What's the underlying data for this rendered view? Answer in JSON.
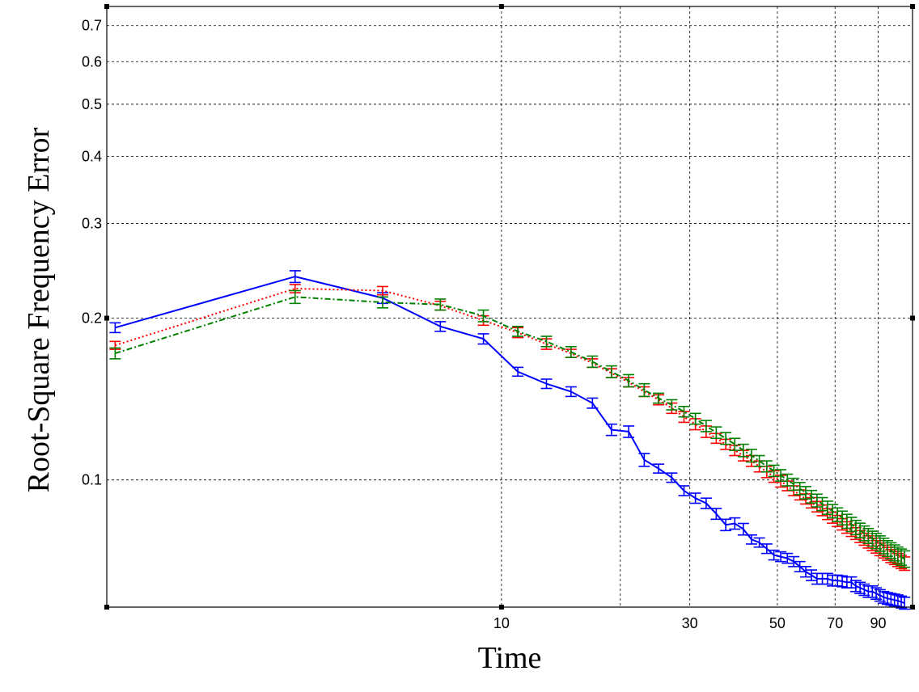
{
  "chart_data": {
    "type": "line",
    "title": "",
    "xlabel": "Time",
    "ylabel": "Root-Square Frequency Error",
    "x_scale": "log",
    "y_scale": "log",
    "xlim": [
      1,
      110
    ],
    "ylim": [
      0.058,
      0.76
    ],
    "grid": true,
    "error_bars": true,
    "xticks": [
      10,
      20,
      30,
      50,
      70,
      90
    ],
    "xtick_labels": [
      "10",
      "",
      "30",
      "50",
      "70",
      "90"
    ],
    "yticks": [
      0.1,
      0.2,
      0.3,
      0.4,
      0.5,
      0.6,
      0.7
    ],
    "ytick_labels": [
      "0.1",
      "0.2",
      "0.3",
      "0.4",
      "0.5",
      "0.6",
      "0.7"
    ],
    "series": [
      {
        "color": "#0000ff",
        "line_style": "solid",
        "points": [
          [
            1.05,
            0.192,
            0.004
          ],
          [
            3.0,
            0.239,
            0.006
          ],
          [
            5.0,
            0.218,
            0.005
          ],
          [
            7.0,
            0.193,
            0.004
          ],
          [
            9.0,
            0.183,
            0.004
          ],
          [
            11.0,
            0.159,
            0.003
          ],
          [
            13.0,
            0.151,
            0.003
          ],
          [
            15.0,
            0.146,
            0.003
          ],
          [
            17.0,
            0.139,
            0.003
          ],
          [
            19.0,
            0.124,
            0.003
          ],
          [
            21.0,
            0.123,
            0.003
          ],
          [
            23.0,
            0.109,
            0.003
          ],
          [
            25.0,
            0.105,
            0.002
          ],
          [
            27.0,
            0.101,
            0.002
          ],
          [
            29.0,
            0.0955,
            0.002
          ],
          [
            31.0,
            0.0925,
            0.002
          ],
          [
            33.0,
            0.0905,
            0.002
          ],
          [
            35.0,
            0.0865,
            0.002
          ],
          [
            37.0,
            0.0825,
            0.002
          ],
          [
            39.0,
            0.083,
            0.002
          ],
          [
            41.0,
            0.081,
            0.002
          ],
          [
            43.0,
            0.0775,
            0.0015
          ],
          [
            45.0,
            0.0765,
            0.0015
          ],
          [
            47.0,
            0.0745,
            0.0015
          ],
          [
            49.0,
            0.0725,
            0.0015
          ],
          [
            51.0,
            0.072,
            0.0015
          ],
          [
            53.0,
            0.0715,
            0.0015
          ],
          [
            55.0,
            0.0705,
            0.0015
          ],
          [
            57.0,
            0.069,
            0.0015
          ],
          [
            59.0,
            0.0675,
            0.0015
          ],
          [
            61.0,
            0.0665,
            0.0015
          ],
          [
            63.0,
            0.0655,
            0.0015
          ],
          [
            65.0,
            0.0655,
            0.0015
          ],
          [
            67.0,
            0.0655,
            0.0015
          ],
          [
            69.0,
            0.065,
            0.0015
          ],
          [
            71.0,
            0.065,
            0.0015
          ],
          [
            73.0,
            0.0648,
            0.0015
          ],
          [
            75.0,
            0.0645,
            0.0015
          ],
          [
            77.0,
            0.0645,
            0.0015
          ],
          [
            79.0,
            0.0635,
            0.0015
          ],
          [
            81.0,
            0.063,
            0.0015
          ],
          [
            83.0,
            0.0625,
            0.0015
          ],
          [
            85.0,
            0.062,
            0.0015
          ],
          [
            87.0,
            0.062,
            0.0015
          ],
          [
            89.0,
            0.0615,
            0.0015
          ],
          [
            91.0,
            0.061,
            0.0015
          ],
          [
            93.0,
            0.0605,
            0.0015
          ],
          [
            95.0,
            0.0602,
            0.0015
          ],
          [
            97.0,
            0.06,
            0.0015
          ],
          [
            99.0,
            0.0598,
            0.0015
          ],
          [
            101.0,
            0.0596,
            0.0015
          ],
          [
            103.0,
            0.0593,
            0.0015
          ],
          [
            105.0,
            0.059,
            0.0015
          ]
        ]
      },
      {
        "color": "#ff0000",
        "line_style": "dotted",
        "points": [
          [
            1.05,
            0.178,
            0.003
          ],
          [
            3.0,
            0.227,
            0.004
          ],
          [
            5.0,
            0.225,
            0.004
          ],
          [
            7.0,
            0.211,
            0.004
          ],
          [
            9.0,
            0.198,
            0.004
          ],
          [
            11.0,
            0.188,
            0.004
          ],
          [
            13.0,
            0.179,
            0.004
          ],
          [
            15.0,
            0.172,
            0.003
          ],
          [
            17.0,
            0.165,
            0.003
          ],
          [
            19.0,
            0.158,
            0.003
          ],
          [
            21.0,
            0.152,
            0.003
          ],
          [
            23.0,
            0.146,
            0.003
          ],
          [
            25.0,
            0.141,
            0.003
          ],
          [
            27.0,
            0.136,
            0.003
          ],
          [
            29.0,
            0.131,
            0.003
          ],
          [
            31.0,
            0.127,
            0.003
          ],
          [
            33.0,
            0.123,
            0.003
          ],
          [
            35.0,
            0.1195,
            0.0025
          ],
          [
            37.0,
            0.1165,
            0.0025
          ],
          [
            39.0,
            0.1135,
            0.0025
          ],
          [
            41.0,
            0.111,
            0.0025
          ],
          [
            43.0,
            0.1085,
            0.0025
          ],
          [
            45.0,
            0.106,
            0.0025
          ],
          [
            47.0,
            0.1035,
            0.0025
          ],
          [
            49.0,
            0.1015,
            0.0025
          ],
          [
            51.0,
            0.0995,
            0.0025
          ],
          [
            53.0,
            0.0975,
            0.002
          ],
          [
            55.0,
            0.0955,
            0.002
          ],
          [
            57.0,
            0.0938,
            0.002
          ],
          [
            59.0,
            0.0922,
            0.002
          ],
          [
            61.0,
            0.0907,
            0.002
          ],
          [
            63.0,
            0.0892,
            0.002
          ],
          [
            65.0,
            0.0878,
            0.002
          ],
          [
            67.0,
            0.0864,
            0.002
          ],
          [
            69.0,
            0.0851,
            0.002
          ],
          [
            71.0,
            0.0839,
            0.002
          ],
          [
            73.0,
            0.0827,
            0.002
          ],
          [
            75.0,
            0.0816,
            0.002
          ],
          [
            77.0,
            0.0805,
            0.002
          ],
          [
            79.0,
            0.0795,
            0.002
          ],
          [
            81.0,
            0.0785,
            0.002
          ],
          [
            83.0,
            0.0776,
            0.002
          ],
          [
            85.0,
            0.0767,
            0.002
          ],
          [
            87.0,
            0.0759,
            0.002
          ],
          [
            89.0,
            0.0751,
            0.002
          ],
          [
            91.0,
            0.0743,
            0.002
          ],
          [
            93.0,
            0.0736,
            0.002
          ],
          [
            95.0,
            0.0729,
            0.002
          ],
          [
            97.0,
            0.0722,
            0.002
          ],
          [
            99.0,
            0.0716,
            0.002
          ],
          [
            101.0,
            0.071,
            0.002
          ],
          [
            103.0,
            0.0704,
            0.002
          ],
          [
            105.0,
            0.0699,
            0.002
          ]
        ]
      },
      {
        "color": "#008000",
        "line_style": "dashdot",
        "points": [
          [
            1.05,
            0.172,
            0.004
          ],
          [
            3.0,
            0.219,
            0.006
          ],
          [
            5.0,
            0.214,
            0.005
          ],
          [
            7.0,
            0.212,
            0.005
          ],
          [
            9.0,
            0.202,
            0.005
          ],
          [
            11.0,
            0.189,
            0.004
          ],
          [
            13.0,
            0.181,
            0.004
          ],
          [
            15.0,
            0.173,
            0.004
          ],
          [
            17.0,
            0.166,
            0.004
          ],
          [
            19.0,
            0.159,
            0.004
          ],
          [
            21.0,
            0.153,
            0.004
          ],
          [
            23.0,
            0.147,
            0.004
          ],
          [
            25.0,
            0.142,
            0.003
          ],
          [
            27.0,
            0.138,
            0.003
          ],
          [
            29.0,
            0.134,
            0.003
          ],
          [
            31.0,
            0.13,
            0.003
          ],
          [
            33.0,
            0.126,
            0.003
          ],
          [
            35.0,
            0.1225,
            0.003
          ],
          [
            37.0,
            0.1195,
            0.003
          ],
          [
            39.0,
            0.1165,
            0.003
          ],
          [
            41.0,
            0.1135,
            0.003
          ],
          [
            43.0,
            0.111,
            0.003
          ],
          [
            45.0,
            0.1085,
            0.0025
          ],
          [
            47.0,
            0.106,
            0.0025
          ],
          [
            49.0,
            0.104,
            0.0025
          ],
          [
            51.0,
            0.102,
            0.0025
          ],
          [
            53.0,
            0.1,
            0.0025
          ],
          [
            55.0,
            0.0982,
            0.0025
          ],
          [
            57.0,
            0.0964,
            0.0025
          ],
          [
            59.0,
            0.0947,
            0.0025
          ],
          [
            61.0,
            0.0931,
            0.0025
          ],
          [
            63.0,
            0.0916,
            0.0025
          ],
          [
            65.0,
            0.0902,
            0.0025
          ],
          [
            67.0,
            0.0888,
            0.0025
          ],
          [
            69.0,
            0.0875,
            0.0025
          ],
          [
            71.0,
            0.0862,
            0.0025
          ],
          [
            73.0,
            0.085,
            0.0025
          ],
          [
            75.0,
            0.0838,
            0.0025
          ],
          [
            77.0,
            0.0827,
            0.0025
          ],
          [
            79.0,
            0.0816,
            0.0025
          ],
          [
            81.0,
            0.0806,
            0.0025
          ],
          [
            83.0,
            0.0796,
            0.0025
          ],
          [
            85.0,
            0.0787,
            0.0025
          ],
          [
            87.0,
            0.0778,
            0.0025
          ],
          [
            89.0,
            0.077,
            0.0025
          ],
          [
            91.0,
            0.0762,
            0.0025
          ],
          [
            93.0,
            0.0754,
            0.0025
          ],
          [
            95.0,
            0.0746,
            0.0025
          ],
          [
            97.0,
            0.0739,
            0.0025
          ],
          [
            99.0,
            0.0732,
            0.0025
          ],
          [
            101.0,
            0.0725,
            0.0025
          ],
          [
            103.0,
            0.0719,
            0.0025
          ],
          [
            105.0,
            0.0713,
            0.0025
          ]
        ]
      }
    ]
  }
}
